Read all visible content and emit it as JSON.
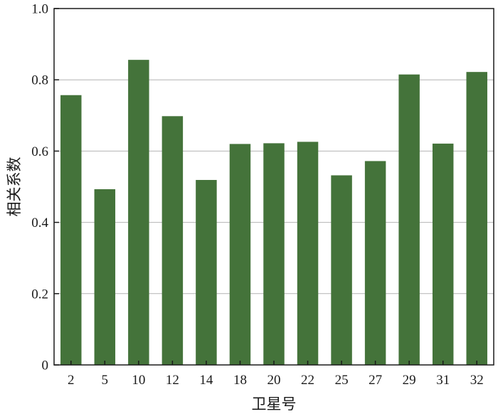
{
  "chart_data": {
    "type": "bar",
    "xlabel": "卫星号",
    "ylabel": "相关系数",
    "categories": [
      "2",
      "5",
      "10",
      "12",
      "14",
      "18",
      "20",
      "22",
      "25",
      "27",
      "29",
      "31",
      "32"
    ],
    "values": [
      0.757,
      0.493,
      0.856,
      0.698,
      0.519,
      0.62,
      0.622,
      0.626,
      0.532,
      0.572,
      0.815,
      0.621,
      0.822
    ],
    "ylim": [
      0,
      1.0
    ],
    "yticks": [
      0,
      0.2,
      0.4,
      0.6,
      0.8,
      1.0
    ],
    "ytick_labels": [
      "0",
      "0.2",
      "0.4",
      "0.6",
      "0.8",
      "1.0"
    ],
    "grid": true,
    "bar_color": "#44733a",
    "grid_color": "#b4b4b4"
  }
}
